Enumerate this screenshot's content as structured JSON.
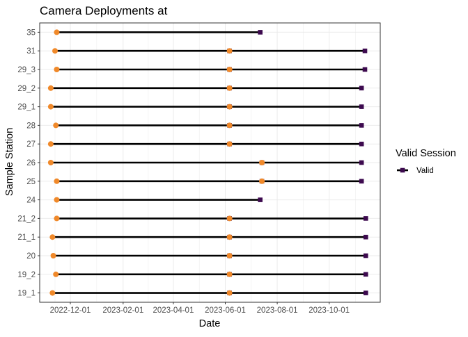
{
  "chart_data": {
    "type": "timeline",
    "title": "Camera Deployments at",
    "xlabel": "Date",
    "ylabel": "Sample Station",
    "x_ticks": [
      "2022-12-01",
      "2023-02-01",
      "2023-04-01",
      "2023-06-01",
      "2023-08-01",
      "2023-10-01"
    ],
    "x_range": [
      "2022-10-26",
      "2023-11-30"
    ],
    "grid": true,
    "legend": {
      "title": "Valid Session",
      "position": "right",
      "entries": [
        {
          "label": "Valid",
          "color": "#3d0a4f"
        }
      ]
    },
    "colors": {
      "start_point": "#f0892a",
      "end_point": "#3d0a4f",
      "segment": "#000000",
      "panel_border": "#333333",
      "grid_major": "#ebebeb"
    },
    "stations": [
      "35",
      "31",
      "29_3",
      "29_2",
      "29_1",
      "28",
      "27",
      "26",
      "25",
      "24",
      "21_2",
      "21_1",
      "20",
      "19_2",
      "19_1"
    ],
    "deployments": [
      {
        "station": "35",
        "start": "2022-11-15",
        "end": "2023-07-12"
      },
      {
        "station": "31",
        "start": "2022-11-13",
        "end": "2023-06-06"
      },
      {
        "station": "31",
        "start": "2023-06-06",
        "end": "2023-11-12"
      },
      {
        "station": "29_3",
        "start": "2022-11-15",
        "end": "2023-06-06"
      },
      {
        "station": "29_3",
        "start": "2023-06-06",
        "end": "2023-11-12"
      },
      {
        "station": "29_2",
        "start": "2022-11-08",
        "end": "2023-06-06"
      },
      {
        "station": "29_2",
        "start": "2023-06-06",
        "end": "2023-11-08"
      },
      {
        "station": "29_1",
        "start": "2022-11-08",
        "end": "2023-06-06"
      },
      {
        "station": "29_1",
        "start": "2023-06-06",
        "end": "2023-11-08"
      },
      {
        "station": "28",
        "start": "2022-11-14",
        "end": "2023-06-06"
      },
      {
        "station": "28",
        "start": "2023-06-06",
        "end": "2023-11-08"
      },
      {
        "station": "27",
        "start": "2022-11-08",
        "end": "2023-06-06"
      },
      {
        "station": "27",
        "start": "2023-06-06",
        "end": "2023-11-08"
      },
      {
        "station": "26",
        "start": "2022-11-08",
        "end": "2023-07-14"
      },
      {
        "station": "26",
        "start": "2023-07-14",
        "end": "2023-11-08"
      },
      {
        "station": "25",
        "start": "2022-11-15",
        "end": "2023-07-14"
      },
      {
        "station": "25",
        "start": "2023-07-14",
        "end": "2023-11-08"
      },
      {
        "station": "24",
        "start": "2022-11-15",
        "end": "2023-07-12"
      },
      {
        "station": "21_2",
        "start": "2022-11-15",
        "end": "2023-06-06"
      },
      {
        "station": "21_2",
        "start": "2023-06-06",
        "end": "2023-11-13"
      },
      {
        "station": "21_1",
        "start": "2022-11-10",
        "end": "2023-06-06"
      },
      {
        "station": "21_1",
        "start": "2023-06-06",
        "end": "2023-11-13"
      },
      {
        "station": "20",
        "start": "2022-11-11",
        "end": "2023-06-06"
      },
      {
        "station": "20",
        "start": "2023-06-06",
        "end": "2023-11-13"
      },
      {
        "station": "19_2",
        "start": "2022-11-14",
        "end": "2023-06-06"
      },
      {
        "station": "19_2",
        "start": "2023-06-06",
        "end": "2023-11-13"
      },
      {
        "station": "19_1",
        "start": "2022-11-10",
        "end": "2023-06-06"
      },
      {
        "station": "19_1",
        "start": "2023-06-06",
        "end": "2023-11-13"
      }
    ]
  }
}
